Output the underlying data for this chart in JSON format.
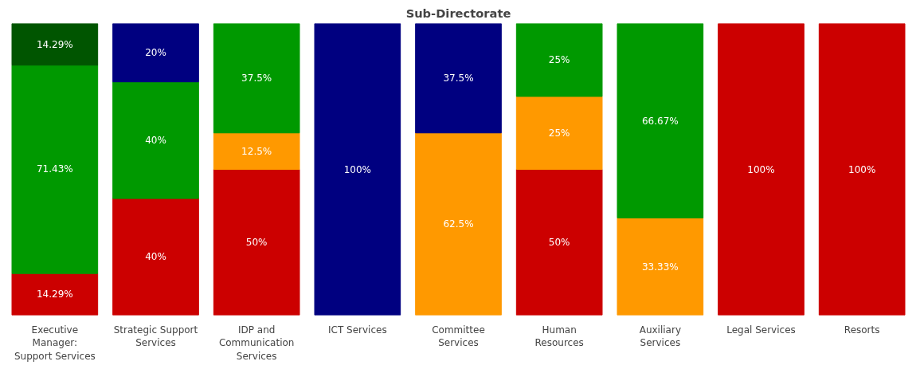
{
  "chart_data": {
    "type": "bar",
    "title": "Sub-Directorate",
    "stacked": true,
    "grid": false,
    "tick_labels": "x",
    "ylim": [
      0,
      100
    ],
    "categories": [
      "Executive\nManager:\nSupport Services",
      "Strategic Support\nServices",
      "IDP and\nCommunication\nServices",
      "ICT Services",
      "Committee\nServices",
      "Human\nResources",
      "Auxiliary\nServices",
      "Legal Services",
      "Resorts"
    ],
    "series": [
      {
        "color": "#cc0000",
        "values": [
          14.29,
          40,
          50,
          null,
          null,
          50,
          null,
          100,
          100
        ],
        "value_labels": [
          "14.29%",
          "40%",
          "50%",
          null,
          null,
          "50%",
          null,
          "100%",
          "100%"
        ]
      },
      {
        "color": "#ff9900",
        "values": [
          null,
          null,
          12.5,
          null,
          62.5,
          25,
          33.33,
          null,
          null
        ],
        "value_labels": [
          null,
          null,
          "12.5%",
          null,
          "62.5%",
          "25%",
          "33.33%",
          null,
          null
        ]
      },
      {
        "color": "#009900",
        "values": [
          71.43,
          40,
          37.5,
          null,
          null,
          25,
          66.67,
          null,
          null
        ],
        "value_labels": [
          "71.43%",
          "40%",
          "37.5%",
          null,
          null,
          "25%",
          "66.67%",
          null,
          null
        ]
      },
      {
        "color": "#005500",
        "values": [
          14.29,
          null,
          null,
          null,
          null,
          null,
          null,
          null,
          null
        ],
        "value_labels": [
          "14.29%",
          null,
          null,
          null,
          null,
          null,
          null,
          null,
          null
        ]
      },
      {
        "color": "#000080",
        "values": [
          null,
          20,
          null,
          100,
          37.5,
          null,
          null,
          null,
          null
        ],
        "value_labels": [
          null,
          "20%",
          null,
          "100%",
          "37.5%",
          null,
          null,
          null,
          null
        ]
      }
    ]
  }
}
